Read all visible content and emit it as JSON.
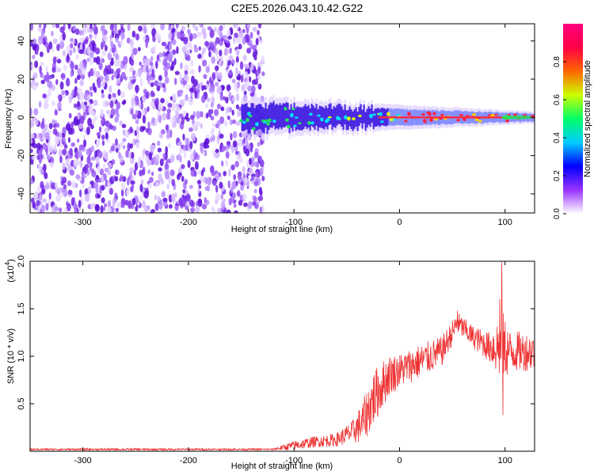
{
  "title": "C2E5.2026.043.10.42.G22",
  "chart_data": [
    {
      "type": "heatmap",
      "name": "spectrogram",
      "xlabel": "Height of straight line (km)",
      "ylabel": "Frequency (Hz)",
      "xlim": [
        -350,
        128
      ],
      "ylim": [
        -50,
        49
      ],
      "xticks": [
        -300,
        -200,
        -100,
        0,
        100
      ],
      "yticks": [
        -40,
        -20,
        0,
        20,
        40
      ],
      "colorbar": {
        "label": "Normalized spectral amplitude",
        "range": [
          0,
          1
        ],
        "ticks": [
          "0.0",
          "0.2",
          "0.4",
          "0.6",
          "0.8"
        ],
        "tick_values": [
          0.0,
          0.2,
          0.4,
          0.6,
          0.8
        ],
        "colors": [
          "#ffffff",
          "#9933ff",
          "#0000ff",
          "#00ccff",
          "#00ff66",
          "#ccff00",
          "#ff6600",
          "#ff0044",
          "#ff0080"
        ]
      },
      "features": {
        "noise_region_x": [
          -350,
          -135
        ],
        "signal_band_center_hz": 0,
        "signal_start_x": -150,
        "signal_band_width_hz_at_start": 14,
        "signal_band_width_hz_at_end": 4
      }
    },
    {
      "type": "line",
      "name": "snr",
      "xlabel": "Height of straight line (km)",
      "ylabel": "SNR (10 * v/v)",
      "multiplier": "(x10",
      "multiplier_exp": "4",
      "multiplier_close": ")",
      "xlim": [
        -350,
        128
      ],
      "ylim": [
        0,
        2.0
      ],
      "xticks": [
        -300,
        -200,
        -100,
        0,
        100
      ],
      "yticks": [
        0.5,
        1.0,
        1.5,
        2.0
      ],
      "ytick_labels": [
        "0.5",
        "1.0",
        "1.5",
        "2.0"
      ],
      "color": "#ee3333",
      "envelope": [
        {
          "x": -350,
          "mean": 0.02,
          "amp": 0.01
        },
        {
          "x": -120,
          "mean": 0.02,
          "amp": 0.01
        },
        {
          "x": -100,
          "mean": 0.06,
          "amp": 0.05
        },
        {
          "x": -80,
          "mean": 0.1,
          "amp": 0.06
        },
        {
          "x": -60,
          "mean": 0.12,
          "amp": 0.07
        },
        {
          "x": -45,
          "mean": 0.2,
          "amp": 0.12
        },
        {
          "x": -35,
          "mean": 0.3,
          "amp": 0.22
        },
        {
          "x": -25,
          "mean": 0.55,
          "amp": 0.3
        },
        {
          "x": -10,
          "mean": 0.8,
          "amp": 0.22
        },
        {
          "x": 0,
          "mean": 0.85,
          "amp": 0.18
        },
        {
          "x": 20,
          "mean": 0.95,
          "amp": 0.18
        },
        {
          "x": 40,
          "mean": 1.05,
          "amp": 0.16
        },
        {
          "x": 55,
          "mean": 1.35,
          "amp": 0.12
        },
        {
          "x": 70,
          "mean": 1.2,
          "amp": 0.12
        },
        {
          "x": 85,
          "mean": 1.1,
          "amp": 0.16
        },
        {
          "x": 97,
          "mean": 1.1,
          "amp": 0.4
        },
        {
          "x": 105,
          "mean": 1.05,
          "amp": 0.22
        },
        {
          "x": 128,
          "mean": 1.05,
          "amp": 0.2
        }
      ],
      "spikes": [
        {
          "x": 97,
          "y": 2.0
        },
        {
          "x": 98,
          "y": 0.38
        },
        {
          "x": 95,
          "y": 1.6
        },
        {
          "x": 55,
          "y": 1.48
        }
      ]
    }
  ]
}
